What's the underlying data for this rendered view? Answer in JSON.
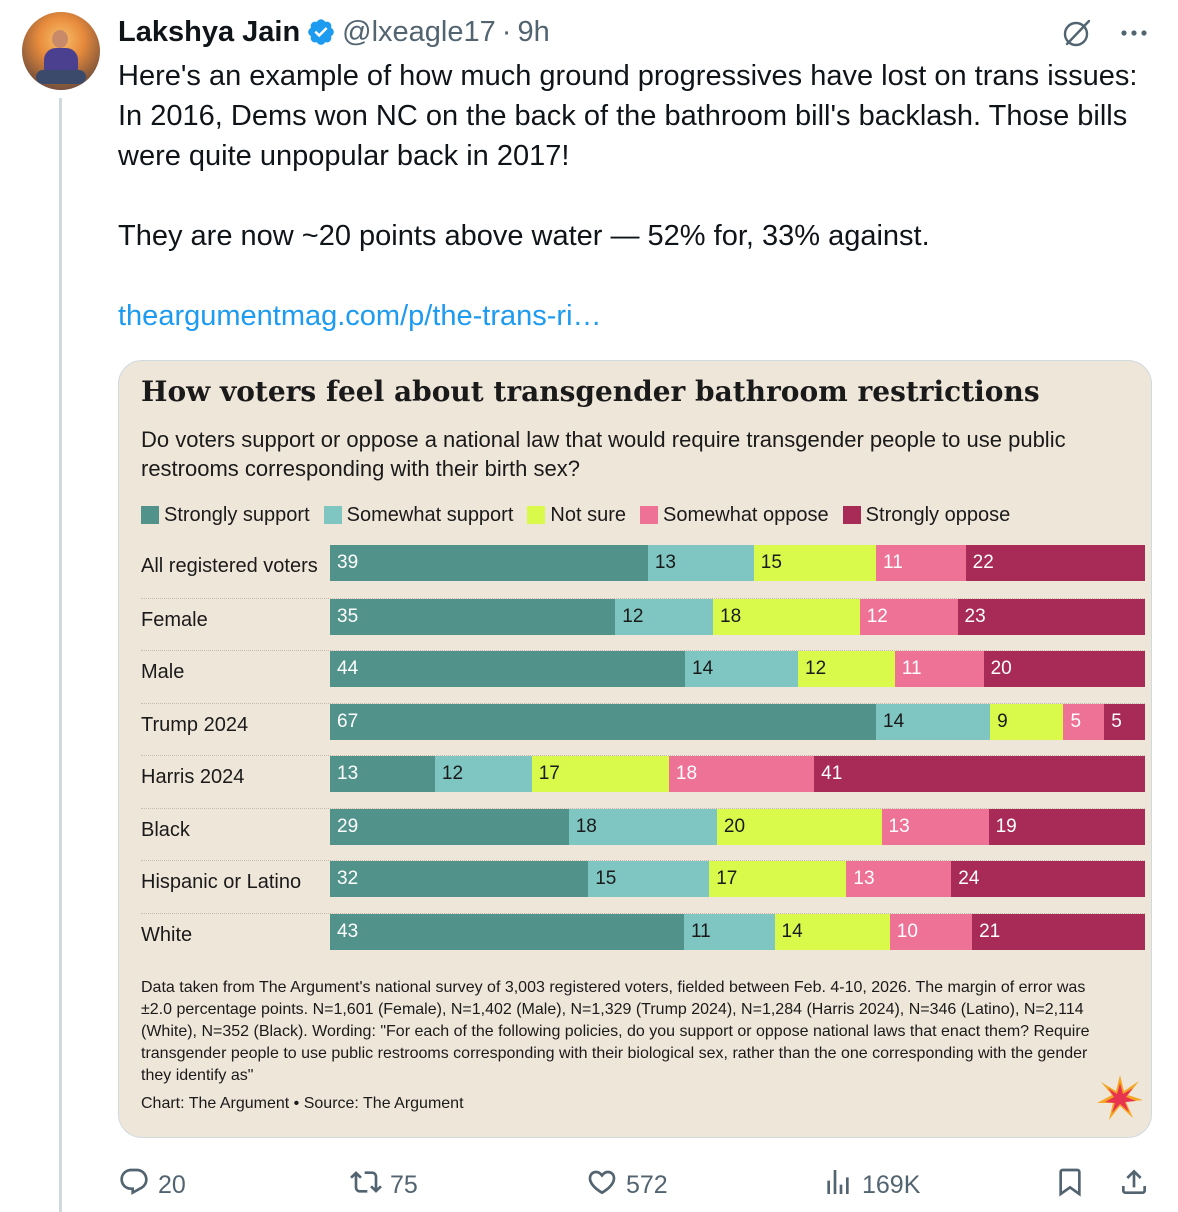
{
  "tweet": {
    "author_name": "Lakshya Jain",
    "handle": "@lxeagle17",
    "separator": "·",
    "time": "9h",
    "text": "Here's an example of how much ground progressives have lost on trans issues: In 2016, Dems won NC on the back of the bathroom bill's backlash. Those bills were quite unpopular back in 2017!\n\nThey are now ~20 points above water — 52% for, 33% against.",
    "link_text": "theargumentmag.com/p/the-trans-ri…"
  },
  "icons": {
    "verified": "verified-badge-icon",
    "grok": "grok-icon",
    "more": "more-icon",
    "reply": "reply-icon",
    "repost": "repost-icon",
    "like": "like-icon",
    "views": "views-icon",
    "bookmark": "bookmark-icon",
    "share": "share-icon"
  },
  "colors": {
    "link": "#1d9bf0",
    "verified": "#1d9bf0",
    "card_bg": "#efe6da",
    "strongly_support": "#51938a",
    "somewhat_support": "#7fc6c2",
    "not_sure": "#d9fa4a",
    "somewhat_oppose": "#ee7296",
    "strongly_oppose": "#a82a56"
  },
  "chart_data": {
    "type": "bar",
    "orientation": "horizontal",
    "stacked": true,
    "title": "How voters feel about transgender bathroom restrictions",
    "subtitle": "Do voters support or oppose a national law that would require transgender people to use public restrooms corresponding with their birth sex?",
    "categories": [
      "All registered voters",
      "Female",
      "Male",
      "Trump 2024",
      "Harris 2024",
      "Black",
      "Hispanic or Latino",
      "White"
    ],
    "series": [
      {
        "name": "Strongly support",
        "color": "#51938a",
        "label_color": "#ffffff",
        "values": [
          39,
          35,
          44,
          67,
          13,
          29,
          32,
          43
        ]
      },
      {
        "name": "Somewhat support",
        "color": "#7fc6c2",
        "label_color": "#1a1a1a",
        "values": [
          13,
          12,
          14,
          14,
          12,
          18,
          15,
          11
        ]
      },
      {
        "name": "Not sure",
        "color": "#d9fa4a",
        "label_color": "#1a1a1a",
        "values": [
          15,
          18,
          12,
          9,
          17,
          20,
          17,
          14
        ]
      },
      {
        "name": "Somewhat oppose",
        "color": "#ee7296",
        "label_color": "#ffffff",
        "values": [
          11,
          12,
          11,
          5,
          18,
          13,
          13,
          10
        ]
      },
      {
        "name": "Strongly oppose",
        "color": "#a82a56",
        "label_color": "#ffffff",
        "values": [
          22,
          23,
          20,
          5,
          41,
          19,
          24,
          21
        ]
      }
    ],
    "footnote": "Data taken from The Argument's national survey of 3,003 registered voters, fielded between Feb. 4-10, 2026. The margin of error was ±2.0 percentage points. N=1,601 (Female), N=1,402 (Male), N=1,329 (Trump 2024), N=1,284 (Harris 2024), N=346 (Latino), N=2,114 (White), N=352 (Black). Wording: \"For each of the following policies, do you support or oppose national laws that enact them? Require transgender people to use public restrooms corresponding with their biological sex, rather than the one corresponding with the gender they identify as\"",
    "source": "Chart: The Argument • Source: The Argument"
  },
  "engagement": {
    "replies": "20",
    "reposts": "75",
    "likes": "572",
    "views": "169K"
  }
}
